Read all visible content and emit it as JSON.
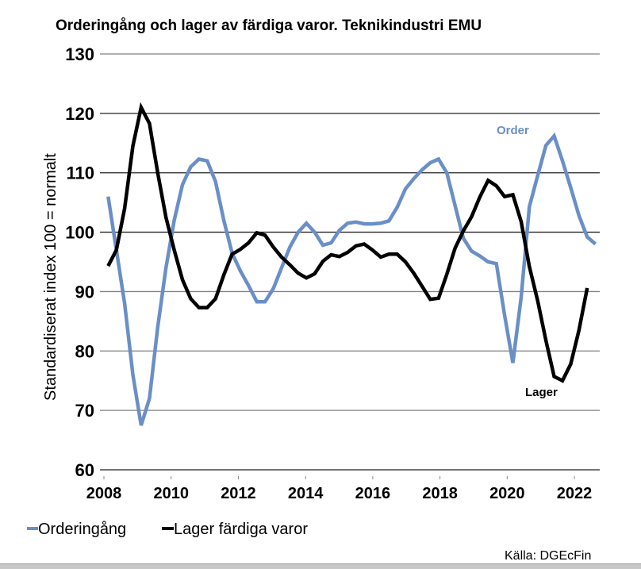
{
  "chart_data": {
    "type": "line",
    "title": "Orderingång och lager av färdiga varor. Teknikindustri EMU",
    "xlabel": "",
    "ylabel": "Standardiserat index 100 = normalt",
    "ylim": [
      60,
      130
    ],
    "yticks": [
      "60",
      "70",
      "80",
      "90",
      "100",
      "110",
      "120",
      "130"
    ],
    "ytick_values": [
      60,
      70,
      80,
      90,
      100,
      110,
      120,
      130
    ],
    "xticks": [
      "2008",
      "2010",
      "2012",
      "2014",
      "2016",
      "2018",
      "2020",
      "2022"
    ],
    "xtick_values": [
      2008,
      2010,
      2012,
      2014,
      2016,
      2018,
      2020,
      2022
    ],
    "xlim": [
      2008,
      2023
    ],
    "grid": true,
    "legend_position": "bottom-left",
    "frequency": "quarterly",
    "x_start": 2008.125,
    "x_step": 0.2458,
    "series": [
      {
        "name": "Orderingång",
        "color": "#6a8fc7",
        "annotation": "Order",
        "values": [
          106,
          97,
          88,
          76,
          67.5,
          72,
          84,
          94,
          102,
          108,
          111,
          112.3,
          112,
          108.5,
          102,
          96.5,
          93.5,
          91,
          88.3,
          88.3,
          90.5,
          94,
          97.5,
          100,
          101.5,
          100,
          97.8,
          98.2,
          100.3,
          101.5,
          101.7,
          101.4,
          101.4,
          101.5,
          101.9,
          104.2,
          107.3,
          109,
          110.5,
          111.7,
          112.3,
          110,
          104.5,
          99,
          96.8,
          96,
          95,
          94.7,
          86,
          78,
          89,
          104.3,
          109.5,
          114.6,
          116.2,
          112,
          107.5,
          102.8,
          99.2,
          98
        ]
      },
      {
        "name": "Lager färdiga varor",
        "color": "#000000",
        "annotation": "Lager",
        "values": [
          94.3,
          97,
          104,
          114.5,
          121,
          118.3,
          110,
          102.5,
          97,
          92,
          88.8,
          87.3,
          87.3,
          88.8,
          92.8,
          96.3,
          97.1,
          98.2,
          99.9,
          99.5,
          97.5,
          95.8,
          94.5,
          93.1,
          92.3,
          93,
          95.1,
          96.2,
          95.9,
          96.6,
          97.7,
          98,
          97,
          95.8,
          96.3,
          96.3,
          95,
          93.1,
          90.9,
          88.7,
          88.9,
          92.9,
          97.3,
          100.2,
          102.6,
          105.9,
          108.7,
          107.8,
          106,
          106.3,
          101.8,
          94.2,
          88.5,
          81.8,
          75.7,
          75,
          77.8,
          83.5,
          90.6
        ]
      }
    ],
    "source": "Källa: DGEcFin"
  }
}
